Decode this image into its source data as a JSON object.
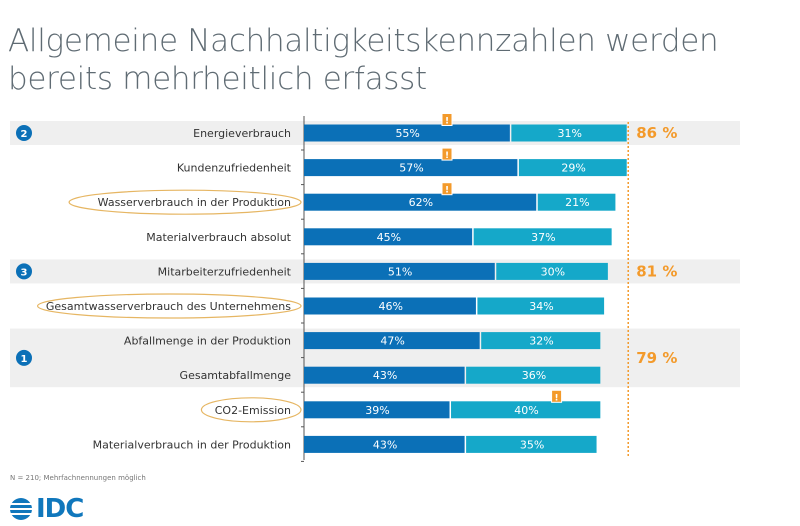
{
  "title": "Allgemeine Nachhaltigkeitskennzahlen werden bereits mehrheitlich erfasst",
  "footnote": "N = 210; Mehrfachnennungen möglich",
  "logo": "IDC",
  "colors": {
    "series1": "#0b70b7",
    "series2": "#15a8c9",
    "accent": "#f39a2b",
    "band": "#efefef",
    "badge": "#0b70b7"
  },
  "chart_data": {
    "type": "bar",
    "orientation": "horizontal-stacked",
    "categories": [
      "Energieverbrauch",
      "Kundenzufriedenheit",
      "Wasserverbrauch in der Produktion",
      "Materialverbrauch absolut",
      "Mitarbeiterzufriedenheit",
      "Gesamtwasserverbrauch des Unternehmens",
      "Abfallmenge in der Produktion",
      "Gesamtabfallmenge",
      "CO2-Emission",
      "Materialverbrauch in der Produktion"
    ],
    "series": [
      {
        "values": [
          55,
          57,
          62,
          45,
          51,
          46,
          47,
          43,
          39,
          43
        ]
      },
      {
        "values": [
          31,
          29,
          21,
          37,
          30,
          34,
          32,
          36,
          40,
          35
        ]
      }
    ],
    "highlighted_categories": [
      2,
      5,
      8
    ],
    "warning_markers": [
      {
        "category": 0,
        "series": 0
      },
      {
        "category": 1,
        "series": 0
      },
      {
        "category": 2,
        "series": 0
      },
      {
        "category": 8,
        "series": 1
      }
    ],
    "groups": [
      {
        "rank": "2",
        "rows": [
          0
        ],
        "total": "86 %"
      },
      {
        "rank": "3",
        "rows": [
          4
        ],
        "total": "81 %"
      },
      {
        "rank": "1",
        "rows": [
          6,
          7
        ],
        "total": "79 %"
      }
    ],
    "reference_line": 86,
    "marker_symbol": "!"
  }
}
